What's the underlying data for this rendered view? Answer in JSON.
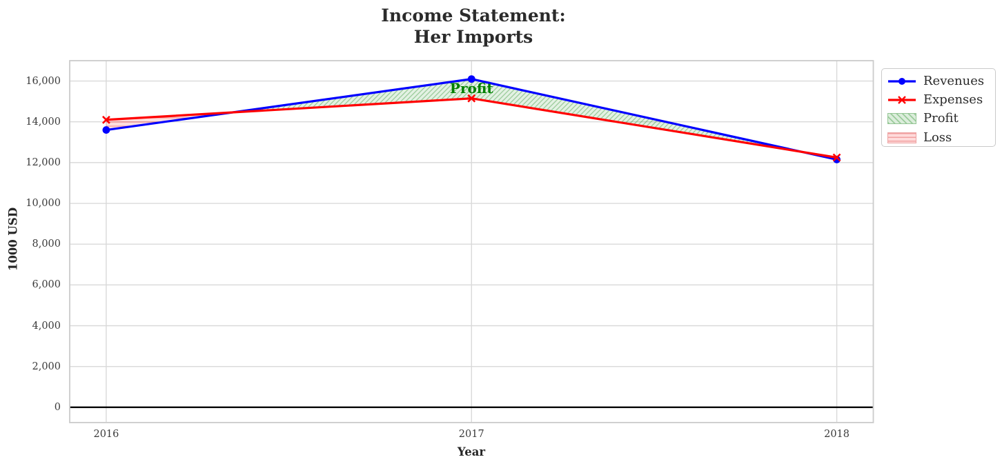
{
  "title": "Income Statement:\nHer Imports",
  "axes": {
    "xlabel": "Year",
    "ylabel": "1000 USD",
    "x_tick_labels": [
      "2016",
      "2017",
      "2018"
    ],
    "y_tick_labels": [
      "0",
      "2,000",
      "4,000",
      "6,000",
      "8,000",
      "10,000",
      "12,000",
      "14,000",
      "16,000"
    ]
  },
  "legend": {
    "items": [
      {
        "label": "Revenues",
        "swatch": "line-circle",
        "color": "#0000ff"
      },
      {
        "label": "Expenses",
        "swatch": "line-x",
        "color": "#ff0000"
      },
      {
        "label": "Profit",
        "swatch": "patch-hatch-diagonal",
        "color": "#008000"
      },
      {
        "label": "Loss",
        "swatch": "patch-hatch-horizontal",
        "color": "#ff0000"
      }
    ]
  },
  "annotation": {
    "text": "Profit",
    "color": "#008000"
  },
  "chart_data": {
    "type": "line",
    "title": "Income Statement: Her Imports",
    "xlabel": "Year",
    "ylabel": "1000 USD",
    "x": [
      2016,
      2017,
      2018
    ],
    "series": [
      {
        "name": "Revenues",
        "color": "#0000ff",
        "marker": "circle",
        "line_width": 3.2,
        "values": [
          13600,
          16100,
          12150
        ]
      },
      {
        "name": "Expenses",
        "color": "#ff0000",
        "marker": "x",
        "line_width": 3.2,
        "values": [
          14100,
          15150,
          12250
        ]
      }
    ],
    "fill_between": [
      {
        "name": "Profit",
        "condition": "revenues>expenses",
        "facecolor": "rgba(0,128,0,0.12)",
        "hatch": "//",
        "hatch_color": "#228b22"
      },
      {
        "name": "Loss",
        "condition": "expenses>revenues",
        "facecolor": "rgba(255,0,0,0.13)",
        "hatch": "-",
        "hatch_color": "#dc1414"
      }
    ],
    "xlim": [
      2015.9,
      2018.1
    ],
    "ylim": [
      -750,
      17000
    ],
    "y_tick_step": 2000,
    "grid": true,
    "grid_color": "#d9d9d9",
    "zero_line": {
      "y": 0,
      "color": "#000000"
    },
    "legend_position": "outside-top-right",
    "annotation": {
      "text": "Profit",
      "x": 2017,
      "y": 15650
    }
  }
}
